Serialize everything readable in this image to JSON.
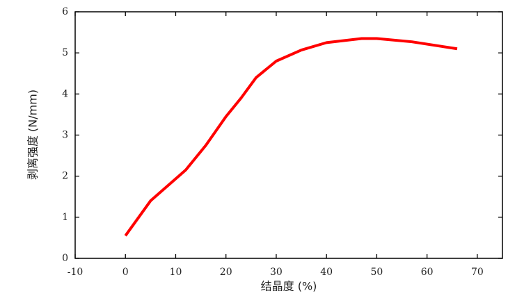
{
  "chart_data": {
    "type": "line",
    "x_label": "结晶度 (%)",
    "y_label": "剥离强度 (N/mm)",
    "series": [
      {
        "color": "#ff0000",
        "x": [
          0,
          5,
          12,
          16,
          20,
          23,
          26,
          30,
          35,
          40,
          47,
          50,
          57,
          66
        ],
        "values": [
          0.55,
          1.4,
          2.15,
          2.75,
          3.45,
          3.9,
          4.4,
          4.8,
          5.07,
          5.25,
          5.35,
          5.35,
          5.27,
          5.1
        ]
      }
    ],
    "xlim": [
      -10,
      75
    ],
    "xticks": [
      -10,
      0,
      10,
      20,
      30,
      40,
      50,
      60,
      70
    ],
    "ylim": [
      0,
      6
    ],
    "yticks": [
      0,
      1,
      2,
      3,
      4,
      5,
      6
    ],
    "grid": false
  }
}
